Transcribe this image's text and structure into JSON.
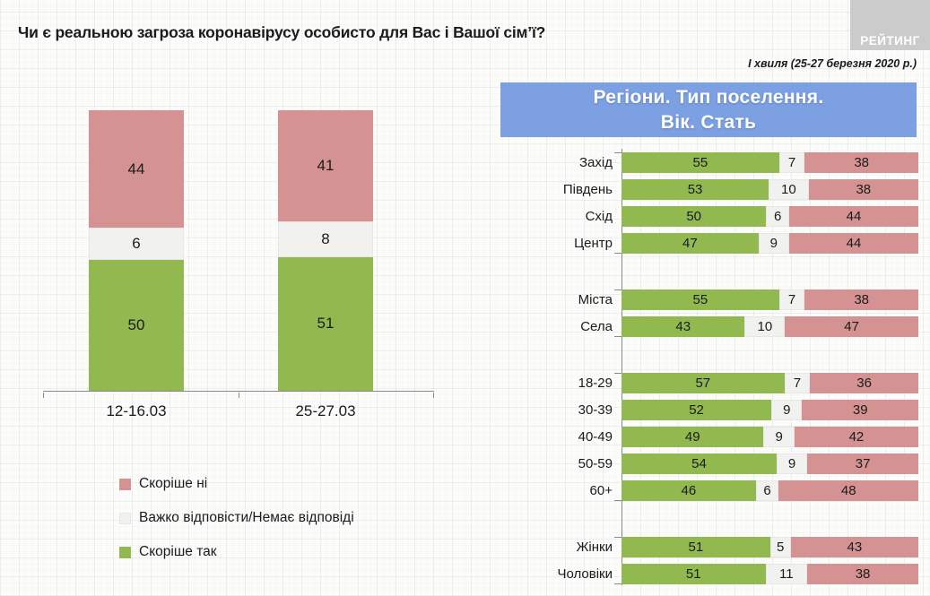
{
  "header": {
    "title": "Чи є реальною загроза коронавірусу особисто для Вас і Вашої сім’ї?",
    "logo_text": "РЕЙТИНГ",
    "wave_note": "І хвиля (25-27 березня 2020 р.)"
  },
  "colors": {
    "agree_green": "#92b850",
    "disagree_pink": "#d59292",
    "neutral_gray": "#f1f1ef",
    "panel_blue": "#7ca0e2",
    "logo_gray": "#cbcbcb",
    "axis_gray": "#8a8a8a"
  },
  "legend": {
    "items": [
      {
        "label": "Скоріше ні"
      },
      {
        "label": "Важко відповісти/Немає відповіді"
      },
      {
        "label": "Скоріше так"
      }
    ]
  },
  "chart_data": [
    {
      "type": "bar",
      "variant": "stacked-vertical",
      "categories": [
        "12-16.03",
        "25-27.03"
      ],
      "series": [
        {
          "name": "Скоріше ні",
          "values": [
            44,
            41
          ]
        },
        {
          "name": "Важко відповісти/Немає відповіді",
          "values": [
            6,
            8
          ]
        },
        {
          "name": "Скоріше так",
          "values": [
            50,
            51
          ]
        }
      ],
      "ylim": [
        0,
        100
      ],
      "legend_position": "bottom-left",
      "grid": false
    },
    {
      "type": "bar",
      "variant": "stacked-horizontal",
      "title_line1": "Регіони. Тип поселення.",
      "title_line2": "Вік. Стать",
      "series_order": [
        "Скоріше так",
        "Важко відповісти/Немає відповіді",
        "Скоріше ні"
      ],
      "groups": [
        {
          "rows": [
            {
              "label": "Захід",
              "yes": 55,
              "dk": 7,
              "no": 38
            },
            {
              "label": "Південь",
              "yes": 53,
              "dk": 10,
              "no": 38
            },
            {
              "label": "Схід",
              "yes": 50,
              "dk": 6,
              "no": 44
            },
            {
              "label": "Центр",
              "yes": 47,
              "dk": 9,
              "no": 44
            }
          ]
        },
        {
          "rows": [
            {
              "label": "Міста",
              "yes": 55,
              "dk": 7,
              "no": 38
            },
            {
              "label": "Села",
              "yes": 43,
              "dk": 10,
              "no": 47
            }
          ]
        },
        {
          "rows": [
            {
              "label": "18-29",
              "yes": 57,
              "dk": 7,
              "no": 36
            },
            {
              "label": "30-39",
              "yes": 52,
              "dk": 9,
              "no": 39
            },
            {
              "label": "40-49",
              "yes": 49,
              "dk": 9,
              "no": 42
            },
            {
              "label": "50-59",
              "yes": 54,
              "dk": 9,
              "no": 37
            },
            {
              "label": "60+",
              "yes": 46,
              "dk": 6,
              "no": 48
            }
          ]
        },
        {
          "rows": [
            {
              "label": "Жінки",
              "yes": 51,
              "dk": 5,
              "no": 43
            },
            {
              "label": "Чоловіки",
              "yes": 51,
              "dk": 11,
              "no": 38
            }
          ]
        }
      ]
    }
  ]
}
